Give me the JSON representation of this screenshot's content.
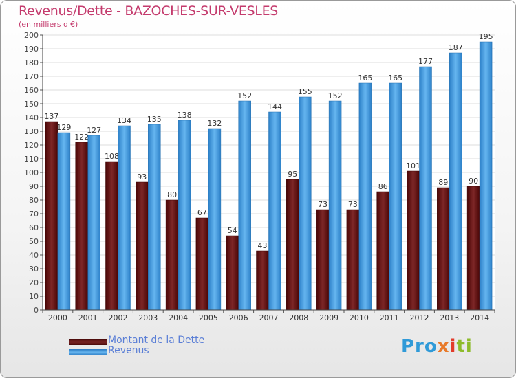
{
  "chart_data": {
    "type": "bar",
    "title": "Revenus/Dette - BAZOCHES-SUR-VESLES",
    "subtitle": "(en milliers d'€)",
    "categories": [
      "2000",
      "2001",
      "2002",
      "2003",
      "2004",
      "2005",
      "2006",
      "2007",
      "2008",
      "2009",
      "2010",
      "2011",
      "2012",
      "2013",
      "2014"
    ],
    "series": [
      {
        "name": "Montant de la Dette",
        "color": "#6a1616",
        "values": [
          137,
          122,
          108,
          93,
          80,
          67,
          54,
          43,
          95,
          73,
          73,
          86,
          101,
          89,
          90
        ]
      },
      {
        "name": "Revenus",
        "color": "#4a9fe0",
        "values": [
          129,
          127,
          134,
          135,
          138,
          132,
          152,
          144,
          155,
          152,
          165,
          165,
          177,
          187,
          195
        ]
      }
    ],
    "ylim": [
      0,
      200
    ],
    "ytick_step": 10,
    "grid": true,
    "legend": "bottom-left"
  },
  "logo": {
    "text": "Proxiti",
    "parts": [
      "Pro",
      "x",
      "i",
      "ti"
    ]
  }
}
